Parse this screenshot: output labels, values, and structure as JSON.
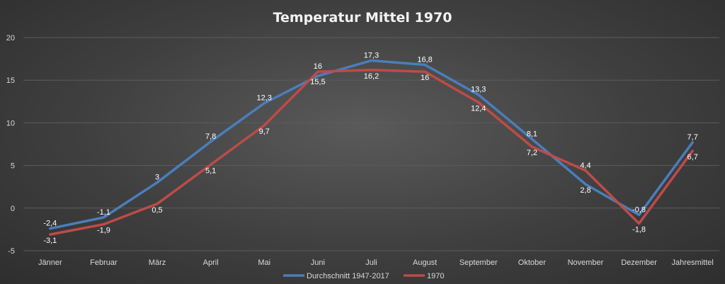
{
  "chart_data": {
    "type": "line",
    "title": "Temperatur Mittel 1970",
    "categories": [
      "Jänner",
      "Februar",
      "März",
      "April",
      "Mai",
      "Juni",
      "Juli",
      "August",
      "September",
      "Oktober",
      "November",
      "Dezember",
      "Jahresmittel"
    ],
    "ylim": [
      -5,
      20
    ],
    "yticks": [
      -5,
      0,
      5,
      10,
      15,
      20
    ],
    "grid": true,
    "legend": "bottom",
    "series": [
      {
        "name": "Durchschnitt 1947-2017",
        "color": "#4a7ebb",
        "values": [
          -2.4,
          -1.1,
          3,
          7.8,
          12.3,
          15.5,
          17.3,
          16.8,
          13.3,
          8.1,
          2.8,
          -0.8,
          7.7
        ],
        "labels": [
          "-2,4",
          "-1,1",
          "3",
          "7,8",
          "12,3",
          "15,5",
          "17,3",
          "16,8",
          "13,3",
          "8,1",
          "2,8",
          "-0,8",
          "7,7"
        ]
      },
      {
        "name": "1970",
        "color": "#be4b48",
        "values": [
          -3.1,
          -1.9,
          0.5,
          5.1,
          9.7,
          16,
          16.2,
          16,
          12.4,
          7.2,
          4.4,
          -1.8,
          6.7
        ],
        "labels": [
          "-3,1",
          "-1,9",
          "0,5",
          "5,1",
          "9,7",
          "16",
          "16,2",
          "16",
          "12,4",
          "7,2",
          "4,4",
          "-1,8",
          "6,7"
        ]
      }
    ]
  }
}
